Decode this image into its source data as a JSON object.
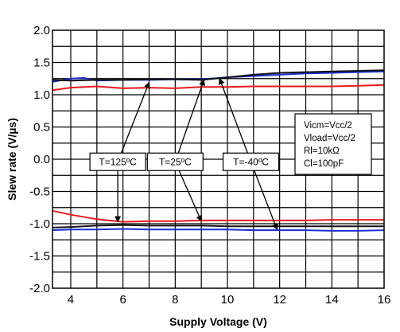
{
  "chart_data": {
    "type": "line",
    "xlabel": "Supply Voltage (V)",
    "ylabel": "Slew rate (V/µs)",
    "xlim": [
      3.3,
      16
    ],
    "ylim": [
      -2.0,
      2.0
    ],
    "xticks": [
      4,
      6,
      8,
      10,
      12,
      14,
      16
    ],
    "yticks": [
      2.0,
      1.5,
      1.0,
      0.5,
      0.0,
      -0.5,
      -1.0,
      -1.5,
      -2.0
    ],
    "ytick_labels": [
      "2.0",
      "1.5",
      "1.0",
      "0.5",
      "0.0",
      "-0.5",
      "-1.0",
      "-1.5",
      "-2.0"
    ],
    "grid": true,
    "series": [
      {
        "color": "#e8191e",
        "points": [
          [
            3.3,
            1.07
          ],
          [
            4,
            1.11
          ],
          [
            5,
            1.13
          ],
          [
            6,
            1.1
          ],
          [
            7,
            1.11
          ],
          [
            8,
            1.1
          ],
          [
            9,
            1.12
          ],
          [
            10,
            1.12
          ],
          [
            11,
            1.13
          ],
          [
            12,
            1.13
          ],
          [
            13,
            1.13
          ],
          [
            14,
            1.13
          ],
          [
            15,
            1.14
          ],
          [
            16,
            1.15
          ]
        ]
      },
      {
        "color": "#1a2fd6",
        "points": [
          [
            3.3,
            1.2
          ],
          [
            4,
            1.25
          ],
          [
            4.5,
            1.26
          ],
          [
            5,
            1.22
          ],
          [
            6,
            1.23
          ],
          [
            7,
            1.23
          ],
          [
            8,
            1.24
          ],
          [
            9,
            1.24
          ],
          [
            10,
            1.27
          ],
          [
            11,
            1.29
          ],
          [
            12,
            1.31
          ],
          [
            13,
            1.33
          ],
          [
            14,
            1.34
          ],
          [
            15,
            1.35
          ],
          [
            16,
            1.36
          ]
        ]
      },
      {
        "color": "#111111",
        "points": [
          [
            3.3,
            1.23
          ],
          [
            4,
            1.22
          ],
          [
            5,
            1.23
          ],
          [
            6,
            1.23
          ],
          [
            7,
            1.24
          ],
          [
            8,
            1.24
          ],
          [
            9,
            1.23
          ],
          [
            10,
            1.27
          ],
          [
            11,
            1.31
          ],
          [
            12,
            1.34
          ],
          [
            13,
            1.35
          ],
          [
            14,
            1.36
          ],
          [
            15,
            1.37
          ],
          [
            16,
            1.38
          ]
        ]
      },
      {
        "color": "#e8191e",
        "points": [
          [
            3.3,
            -0.8
          ],
          [
            4,
            -0.86
          ],
          [
            5,
            -0.93
          ],
          [
            6,
            -0.97
          ],
          [
            7,
            -0.96
          ],
          [
            8,
            -0.96
          ],
          [
            9,
            -0.95
          ],
          [
            10,
            -0.95
          ],
          [
            11,
            -0.95
          ],
          [
            12,
            -0.95
          ],
          [
            13,
            -0.95
          ],
          [
            14,
            -0.94
          ],
          [
            15,
            -0.94
          ],
          [
            16,
            -0.94
          ]
        ]
      },
      {
        "color": "#111111",
        "points": [
          [
            3.3,
            -1.06
          ],
          [
            4,
            -1.05
          ],
          [
            5,
            -1.03
          ],
          [
            6,
            -1.02
          ],
          [
            7,
            -1.03
          ],
          [
            8,
            -1.03
          ],
          [
            9,
            -1.03
          ],
          [
            10,
            -1.04
          ],
          [
            11,
            -1.04
          ],
          [
            12,
            -1.04
          ],
          [
            13,
            -1.04
          ],
          [
            14,
            -1.04
          ],
          [
            15,
            -1.04
          ],
          [
            16,
            -1.04
          ]
        ]
      },
      {
        "color": "#1a2fd6",
        "points": [
          [
            3.3,
            -1.1
          ],
          [
            4,
            -1.09
          ],
          [
            5,
            -1.09
          ],
          [
            6,
            -1.08
          ],
          [
            7,
            -1.09
          ],
          [
            8,
            -1.09
          ],
          [
            9,
            -1.09
          ],
          [
            10,
            -1.09
          ],
          [
            11,
            -1.1
          ],
          [
            12,
            -1.1
          ],
          [
            13,
            -1.1
          ],
          [
            14,
            -1.11
          ],
          [
            15,
            -1.11
          ],
          [
            16,
            -1.1
          ]
        ]
      }
    ],
    "annotations": [
      {
        "text": "T=125ºC",
        "box_at": [
          5.8,
          -0.04
        ],
        "arrows_to": [
          [
            7.0,
            1.19
          ],
          [
            5.8,
            -0.97
          ]
        ]
      },
      {
        "text": "T=25ºC",
        "box_at": [
          8.0,
          -0.04
        ],
        "arrows_to": [
          [
            9.1,
            1.23
          ],
          [
            9.0,
            -0.96
          ]
        ]
      },
      {
        "text": "T=-40ºC",
        "box_at": [
          10.9,
          -0.04
        ],
        "arrows_to": [
          [
            9.7,
            1.25
          ],
          [
            11.9,
            -1.09
          ]
        ]
      }
    ],
    "conditions": [
      "Vicm=Vcc/2",
      "Vload=Vcc/2",
      "Rl=10kΩ",
      "Cl=100pF"
    ]
  }
}
